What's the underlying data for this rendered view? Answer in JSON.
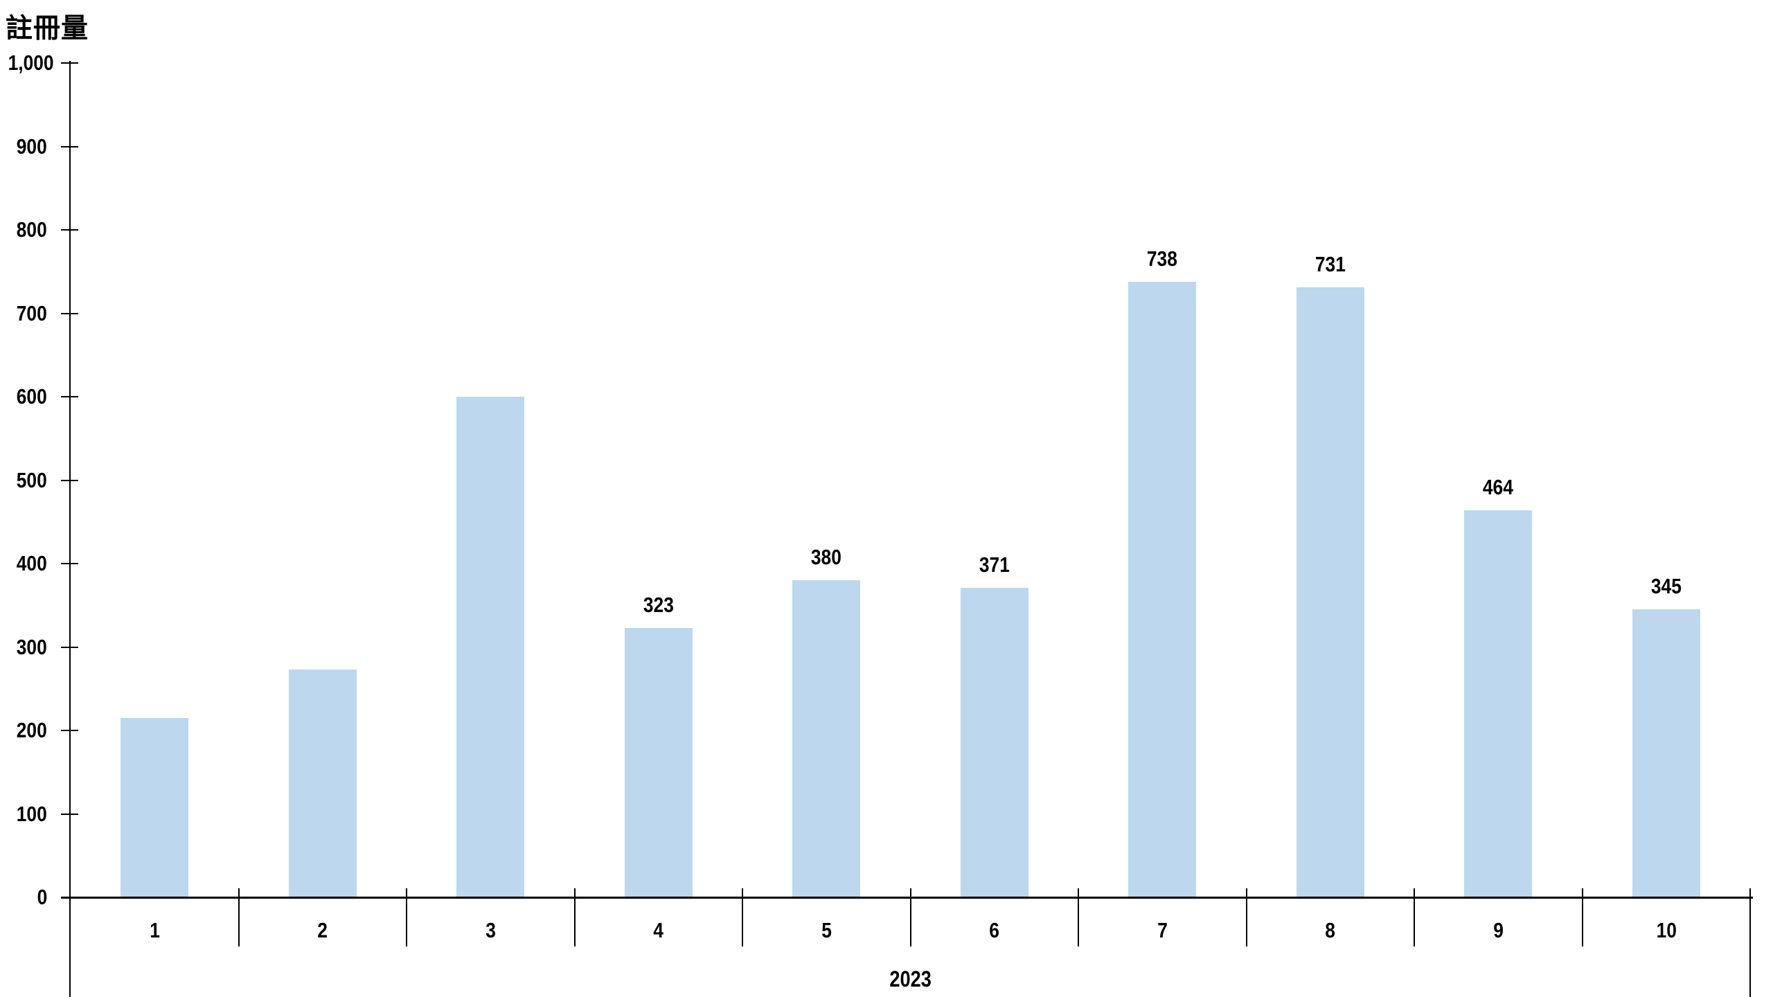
{
  "page": {
    "background_color": "#FFFFFF",
    "text_color": "#000000",
    "axis_color": "#000000"
  },
  "chart_data": {
    "type": "bar",
    "title": "註冊量",
    "x_axis": {
      "group_label": "2023",
      "categories": [
        "1",
        "2",
        "3",
        "4",
        "5",
        "6",
        "7",
        "8",
        "9",
        "10"
      ]
    },
    "y_axis": {
      "label": "註冊量",
      "min": 0,
      "max": 1000,
      "tick_interval": 100,
      "tick_labels": [
        "0",
        "100",
        "200",
        "300",
        "400",
        "500",
        "600",
        "700",
        "800",
        "900",
        "1,000"
      ]
    },
    "series": [
      {
        "name": "註冊量",
        "color": "#BDD7EE",
        "values": [
          215,
          273,
          600,
          323,
          380,
          371,
          738,
          731,
          464,
          345
        ],
        "data_labels": [
          "",
          "",
          "",
          "323",
          "380",
          "371",
          "738",
          "731",
          "464",
          "345"
        ]
      }
    ],
    "layout_hints": {
      "grid": false,
      "legend": false,
      "bars_labeled_from_index": 3,
      "data_label_color": "#000000"
    }
  }
}
